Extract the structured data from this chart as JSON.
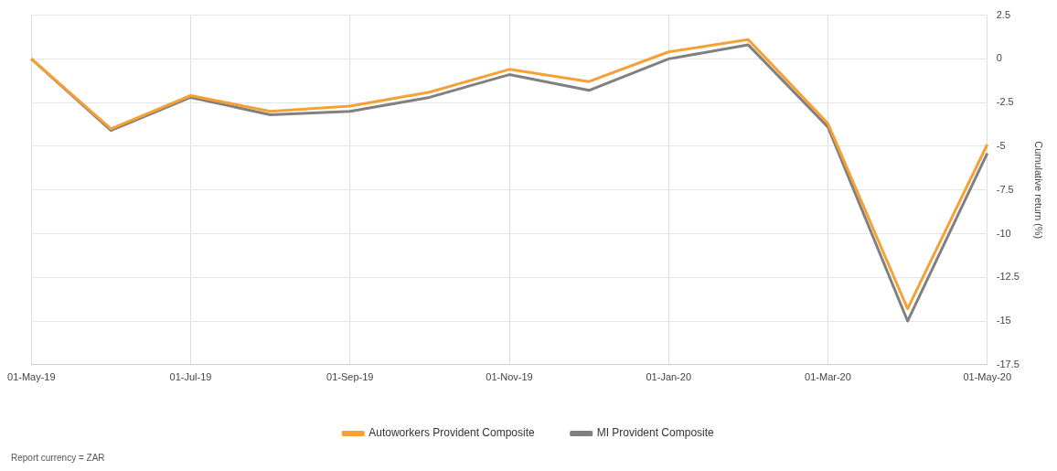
{
  "chart_data": {
    "type": "line",
    "ylabel": "Cumulative return (%)",
    "categories": [
      "01-May-19",
      null,
      "01-Jul-19",
      null,
      "01-Sep-19",
      null,
      "01-Nov-19",
      null,
      "01-Jan-20",
      null,
      "01-Mar-20",
      null,
      "01-May-20"
    ],
    "series": [
      {
        "name": "Autoworkers Provident Composite",
        "color": "#f7a035",
        "values": [
          0,
          -4.0,
          -2.1,
          -3.0,
          -2.7,
          -1.9,
          -0.6,
          -1.3,
          0.4,
          1.1,
          -3.7,
          -14.3,
          -4.9
        ]
      },
      {
        "name": "MI Provident Composite",
        "color": "#808080",
        "values": [
          0,
          -4.1,
          -2.2,
          -3.2,
          -3.0,
          -2.2,
          -0.9,
          -1.8,
          0.0,
          0.8,
          -3.9,
          -15.0,
          -5.4
        ]
      }
    ],
    "ylim": [
      -17.5,
      2.5
    ],
    "yticks": [
      2.5,
      0,
      -2.5,
      -5,
      -7.5,
      -10,
      -12.5,
      -15,
      -17.5
    ],
    "grid": true,
    "legend": "bottom",
    "marker": "none",
    "line_style": "solid",
    "annotations": [
      "Report currency = ZAR"
    ]
  }
}
